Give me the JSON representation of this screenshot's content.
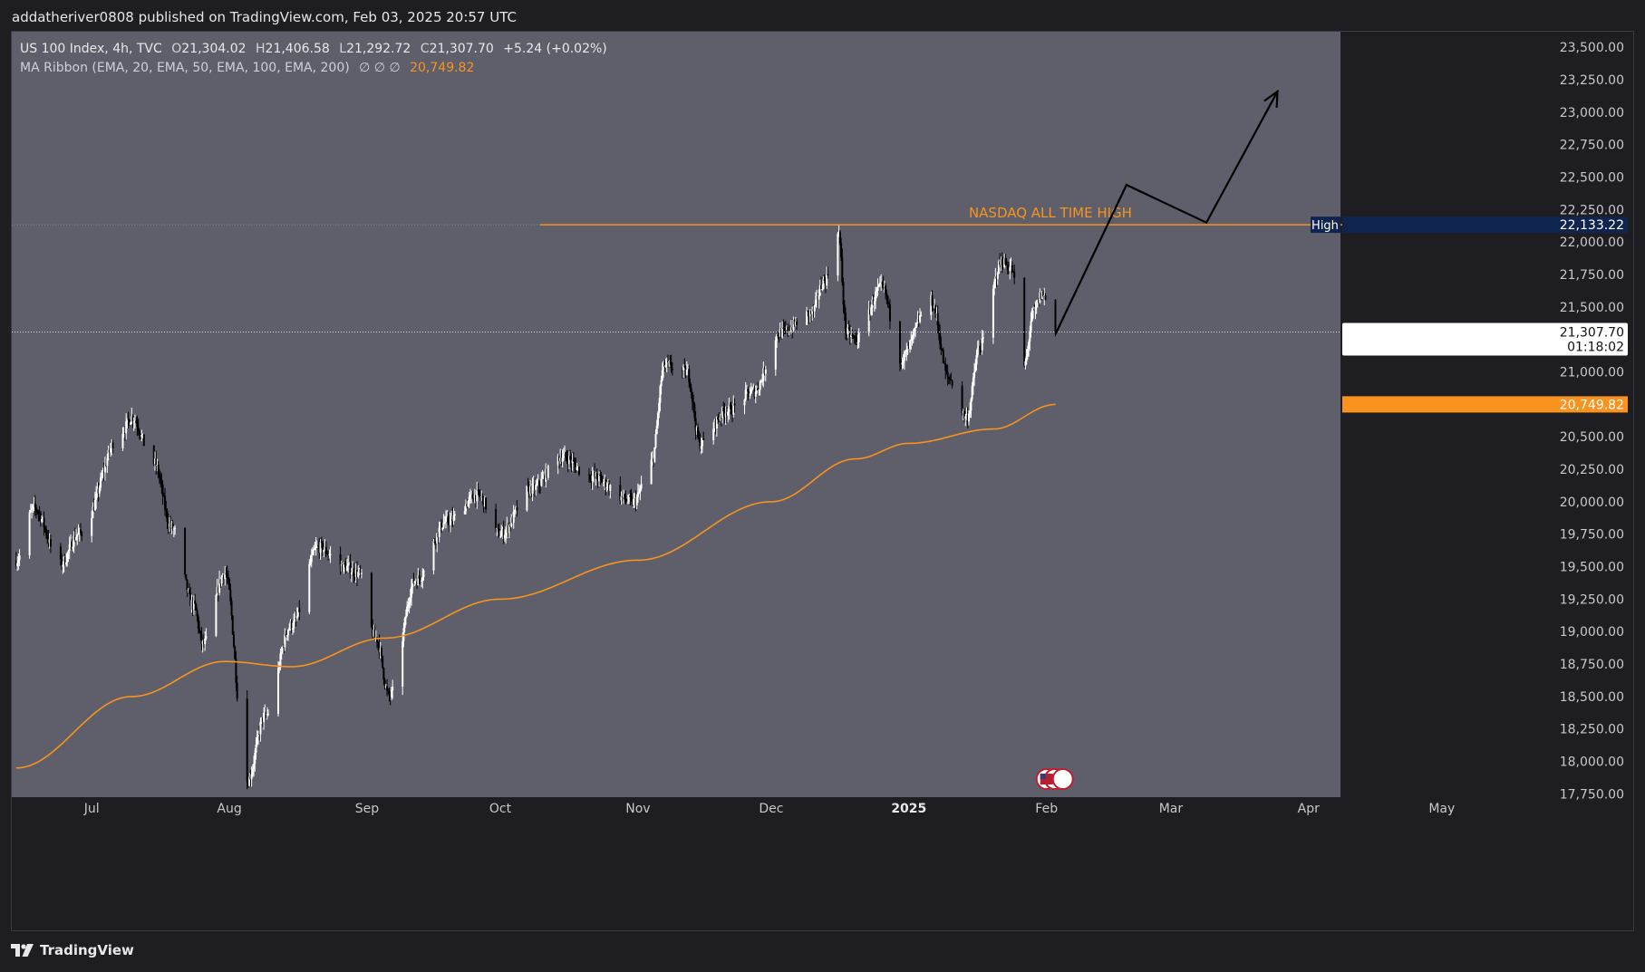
{
  "header": {
    "published_text": "addatheriver0808 published on TradingView.com, Feb 03, 2025 20:57 UTC"
  },
  "legend": {
    "symbol": "US 100 Index, 4h, TVC",
    "open_label": "O",
    "open": "21,304.02",
    "high_label": "H",
    "high": "21,406.58",
    "low_label": "L",
    "low": "21,292.72",
    "close_label": "C",
    "close": "21,307.70",
    "change": "+5.24 (+0.02%)",
    "ma_ribbon": "MA Ribbon (EMA, 20, EMA, 50, EMA, 100, EMA, 200)",
    "ma_empty": "∅  ∅  ∅",
    "ma_value": "20,749.82"
  },
  "footer": {
    "brand": "TradingView"
  },
  "colors": {
    "plot_bg": "#5f5f6b",
    "axis_bg": "#1e1e22",
    "ma_line": "#f7931e",
    "resistance": "#f7931e",
    "up_candle": "#ffffff",
    "down_candle": "#000000",
    "high_badge": "#0f2550",
    "ma_badge": "#f7931e"
  },
  "chart_data": {
    "type": "candlestick",
    "symbol": "US 100 Index",
    "timeframe": "4h",
    "y_axis": {
      "ticks": [
        17750,
        18000,
        18250,
        18500,
        18750,
        19000,
        19250,
        19500,
        19750,
        20000,
        20250,
        20500,
        20750,
        21000,
        21250,
        21500,
        21750,
        22000,
        22250,
        22500,
        22750,
        23000,
        23250,
        23500
      ],
      "tick_labels": [
        "17,750.00",
        "18,000.00",
        "18,250.00",
        "18,500.00",
        "18,750.00",
        "19,000.00",
        "19,250.00",
        "19,500.00",
        "19,750.00",
        "20,000.00",
        "20,250.00",
        "20,500.00",
        "20,750.00",
        "21,000.00",
        "21,250.00",
        "21,500.00",
        "21,750.00",
        "22,000.00",
        "22,250.00",
        "22,500.00",
        "22,750.00",
        "23,000.00",
        "23,250.00",
        "23,500.00"
      ],
      "range": [
        17725,
        23620
      ]
    },
    "x_axis": {
      "labels": [
        "Jul",
        "Aug",
        "Sep",
        "Oct",
        "Nov",
        "Dec",
        "2025",
        "Feb",
        "Mar",
        "Apr",
        "May"
      ],
      "label_dates": [
        "2024-07-01",
        "2024-08-01",
        "2024-09-01",
        "2024-10-01",
        "2024-11-01",
        "2024-12-01",
        "2025-01-01",
        "2025-02-01",
        "2025-03-01",
        "2025-04-01",
        "2025-05-01"
      ],
      "bold": [
        "2025"
      ]
    },
    "price_key_points": [
      {
        "date": "2024-06-14",
        "price": 19550
      },
      {
        "date": "2024-06-18",
        "price": 19950
      },
      {
        "date": "2024-06-24",
        "price": 19520
      },
      {
        "date": "2024-06-28",
        "price": 19750
      },
      {
        "date": "2024-07-08",
        "price": 20550
      },
      {
        "date": "2024-07-10",
        "price": 20650
      },
      {
        "date": "2024-07-15",
        "price": 20300
      },
      {
        "date": "2024-07-19",
        "price": 19800
      },
      {
        "date": "2024-07-24",
        "price": 19200
      },
      {
        "date": "2024-07-26",
        "price": 18900
      },
      {
        "date": "2024-07-31",
        "price": 19450
      },
      {
        "date": "2024-08-05",
        "price": 17850
      },
      {
        "date": "2024-08-09",
        "price": 18350
      },
      {
        "date": "2024-08-15",
        "price": 19050
      },
      {
        "date": "2024-08-21",
        "price": 19650
      },
      {
        "date": "2024-08-27",
        "price": 19500
      },
      {
        "date": "2024-08-30",
        "price": 19450
      },
      {
        "date": "2024-09-03",
        "price": 18950
      },
      {
        "date": "2024-09-06",
        "price": 18500
      },
      {
        "date": "2024-09-12",
        "price": 19400
      },
      {
        "date": "2024-09-19",
        "price": 19850
      },
      {
        "date": "2024-09-26",
        "price": 20050
      },
      {
        "date": "2024-10-01",
        "price": 19750
      },
      {
        "date": "2024-10-08",
        "price": 20100
      },
      {
        "date": "2024-10-15",
        "price": 20350
      },
      {
        "date": "2024-10-21",
        "price": 20200
      },
      {
        "date": "2024-10-31",
        "price": 20000
      },
      {
        "date": "2024-11-04",
        "price": 20300
      },
      {
        "date": "2024-11-07",
        "price": 21050
      },
      {
        "date": "2024-11-12",
        "price": 21000
      },
      {
        "date": "2024-11-15",
        "price": 20450
      },
      {
        "date": "2024-11-21",
        "price": 20700
      },
      {
        "date": "2024-11-27",
        "price": 20850
      },
      {
        "date": "2024-12-03",
        "price": 21300
      },
      {
        "date": "2024-12-10",
        "price": 21450
      },
      {
        "date": "2024-12-13",
        "price": 21700
      },
      {
        "date": "2024-12-16",
        "price": 22100
      },
      {
        "date": "2024-12-18",
        "price": 21300
      },
      {
        "date": "2024-12-20",
        "price": 21250
      },
      {
        "date": "2024-12-26",
        "price": 21650
      },
      {
        "date": "2024-12-30",
        "price": 21100
      },
      {
        "date": "2025-01-06",
        "price": 21550
      },
      {
        "date": "2025-01-10",
        "price": 20950
      },
      {
        "date": "2025-01-14",
        "price": 20650
      },
      {
        "date": "2025-01-17",
        "price": 21200
      },
      {
        "date": "2025-01-22",
        "price": 21850
      },
      {
        "date": "2025-01-24",
        "price": 21800
      },
      {
        "date": "2025-01-27",
        "price": 21050
      },
      {
        "date": "2025-01-29",
        "price": 21450
      },
      {
        "date": "2025-01-31",
        "price": 21600
      },
      {
        "date": "2025-02-03",
        "price": 21307.7
      }
    ],
    "ema_200_key_points": [
      {
        "date": "2024-06-14",
        "price": 17950
      },
      {
        "date": "2024-07-10",
        "price": 18500
      },
      {
        "date": "2024-07-31",
        "price": 18770
      },
      {
        "date": "2024-08-15",
        "price": 18730
      },
      {
        "date": "2024-09-05",
        "price": 18950
      },
      {
        "date": "2024-10-01",
        "price": 19250
      },
      {
        "date": "2024-11-01",
        "price": 19550
      },
      {
        "date": "2024-12-01",
        "price": 20000
      },
      {
        "date": "2024-12-20",
        "price": 20330
      },
      {
        "date": "2025-01-01",
        "price": 20450
      },
      {
        "date": "2025-01-20",
        "price": 20560
      },
      {
        "date": "2025-02-03",
        "price": 20749.82
      }
    ],
    "last_price": {
      "value": 21307.7,
      "label": "21,307.70",
      "countdown": "01:18:02"
    },
    "ma_last": {
      "value": 20749.82,
      "label": "20,749.82"
    },
    "high_marker": {
      "badge": "High",
      "value": 22133.22,
      "label": "22,133.22"
    },
    "annotations": [
      {
        "type": "horizontal_line",
        "price": 22133.22,
        "from": "2024-10-10",
        "to": "2025-04-21",
        "text": "NASDAQ ALL TIME HIGH"
      },
      {
        "type": "arrow_path",
        "points": [
          {
            "date": "2025-02-03",
            "price": 21290
          },
          {
            "date": "2025-02-19",
            "price": 22440
          },
          {
            "date": "2025-03-09",
            "price": 22150
          },
          {
            "date": "2025-03-25",
            "price": 23160
          }
        ]
      }
    ]
  }
}
